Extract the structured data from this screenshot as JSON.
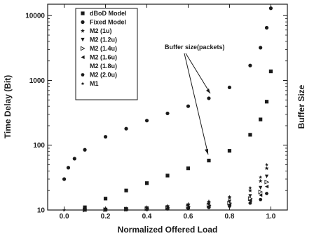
{
  "chart_data": {
    "type": "scatter",
    "xlabel": "Normalized Offered Load",
    "ylabel": "Time Delay (Bit)",
    "y2label": "Buffer Size",
    "xlim": [
      -0.08,
      1.08
    ],
    "ylim": [
      10,
      15000
    ],
    "yscale": "log",
    "x_ticks": [
      0.0,
      0.2,
      0.4,
      0.6,
      0.8,
      1.0
    ],
    "x_tick_labels": [
      "0.0",
      "0.2",
      "0.4",
      "0.6",
      "0.8",
      "1.0"
    ],
    "y_ticks": [
      10,
      100,
      1000,
      10000
    ],
    "y_tick_labels": [
      "10",
      "100",
      "1000",
      "10000"
    ],
    "grid": false,
    "legend_position": "top-left",
    "annotation": "Buffer size(packets)",
    "series": [
      {
        "name": "dBoD Model",
        "marker": "square",
        "x": [
          0.1,
          0.2,
          0.3,
          0.4,
          0.5,
          0.6,
          0.7,
          0.8,
          0.9,
          0.95,
          0.98,
          1.0
        ],
        "y": [
          11,
          15,
          20,
          26,
          34,
          44,
          58,
          82,
          145,
          250,
          470,
          1380
        ]
      },
      {
        "name": "Fixed Model",
        "marker": "circle",
        "x": [
          0.0,
          0.02,
          0.05,
          0.1,
          0.2,
          0.3,
          0.4,
          0.5,
          0.6,
          0.7,
          0.8,
          0.9,
          0.95,
          0.98,
          1.0
        ],
        "y": [
          30,
          45,
          62,
          85,
          135,
          180,
          240,
          310,
          400,
          530,
          780,
          1700,
          3200,
          6500,
          13000
        ]
      },
      {
        "name": "M2 (1u)",
        "marker": "star",
        "x": [
          0.1,
          0.2,
          0.3,
          0.4,
          0.5,
          0.6,
          0.7,
          0.8,
          0.9,
          0.95,
          0.98
        ],
        "y": [
          10,
          10.3,
          10.6,
          11,
          11.5,
          12.3,
          13.5,
          15.5,
          20,
          28,
          44
        ]
      },
      {
        "name": "M2 (1.2u)",
        "marker": "triangle-down",
        "x": [
          0.1,
          0.2,
          0.3,
          0.4,
          0.5,
          0.6,
          0.7,
          0.8,
          0.9,
          0.95,
          0.98
        ],
        "y": [
          10,
          10.2,
          10.4,
          10.7,
          11,
          11.5,
          12.2,
          13.5,
          16.5,
          22,
          33
        ]
      },
      {
        "name": "M2 (1.4u)",
        "marker": "triangle-right",
        "x": [
          0.1,
          0.2,
          0.3,
          0.4,
          0.5,
          0.6,
          0.7,
          0.8,
          0.9,
          0.95,
          0.98
        ],
        "y": [
          10,
          10.1,
          10.3,
          10.5,
          10.8,
          11.2,
          11.8,
          12.8,
          15,
          19,
          27
        ]
      },
      {
        "name": "M2 (1.6u)",
        "marker": "triangle-left",
        "x": [
          0.1,
          0.2,
          0.3,
          0.4,
          0.5,
          0.6,
          0.7,
          0.8,
          0.9,
          0.95,
          0.98
        ],
        "y": [
          10,
          10.1,
          10.2,
          10.4,
          10.6,
          10.9,
          11.4,
          12.2,
          14,
          17,
          23
        ]
      },
      {
        "name": "M2 (1.8u)",
        "marker": "none",
        "x": [],
        "y": []
      },
      {
        "name": "M2 (2.0u)",
        "marker": "hexagon",
        "x": [
          0.1,
          0.2,
          0.3,
          0.4,
          0.5,
          0.6,
          0.7,
          0.8,
          0.9,
          0.95,
          0.98
        ],
        "y": [
          10,
          10,
          10.1,
          10.2,
          10.4,
          10.6,
          10.9,
          11.5,
          12.8,
          14.5,
          18
        ]
      },
      {
        "name": "M1",
        "marker": "star-small",
        "x": [
          0.0,
          0.1,
          0.2,
          0.3,
          0.4,
          0.5,
          0.6,
          0.7,
          0.8,
          0.9,
          0.95,
          0.98
        ],
        "y": [
          10,
          10,
          10.2,
          10.4,
          10.7,
          11.2,
          12,
          13.5,
          16,
          22,
          32,
          50
        ]
      }
    ]
  }
}
